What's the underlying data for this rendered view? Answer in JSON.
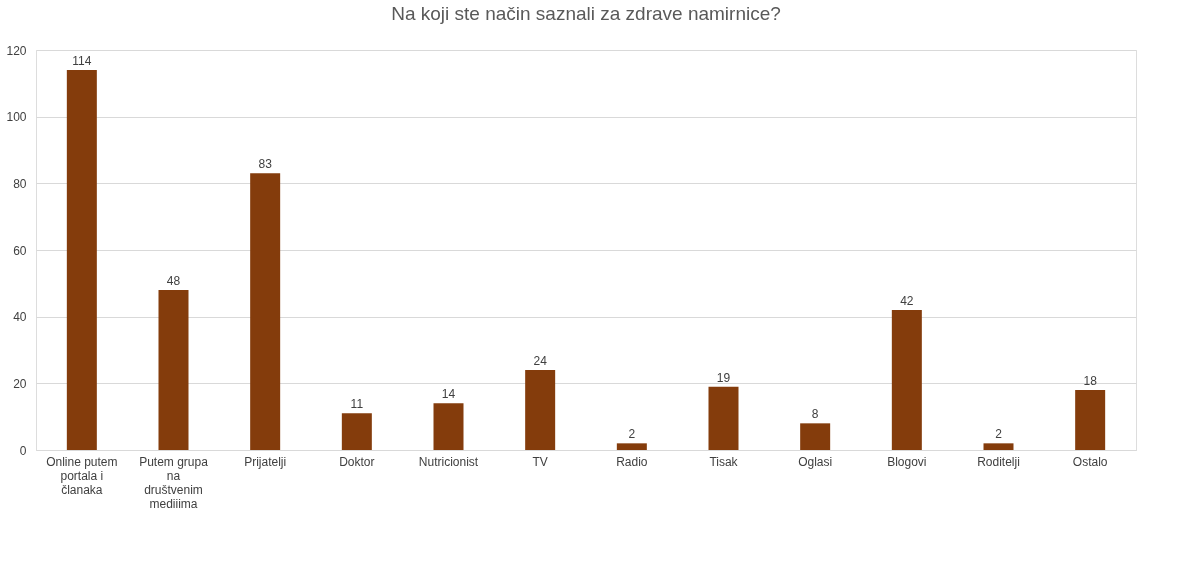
{
  "chart_data": {
    "type": "bar",
    "title": "Na koji ste način saznali za zdrave namirnice?",
    "categories": [
      "Online putem portala i članaka",
      "Putem grupa na društvenim mediiima",
      "Prijatelji",
      "Doktor",
      "Nutricionist",
      "TV",
      "Radio",
      "Tisak",
      "Oglasi",
      "Blogovi",
      "Roditelji",
      "Ostalo"
    ],
    "values": [
      114,
      48,
      83,
      11,
      14,
      24,
      2,
      19,
      8,
      42,
      2,
      18
    ],
    "color": "#843c0c",
    "ylim": [
      0,
      120
    ],
    "yticks": [
      0,
      20,
      40,
      60,
      80,
      100,
      120
    ],
    "grid": "y",
    "data_labels": true
  }
}
